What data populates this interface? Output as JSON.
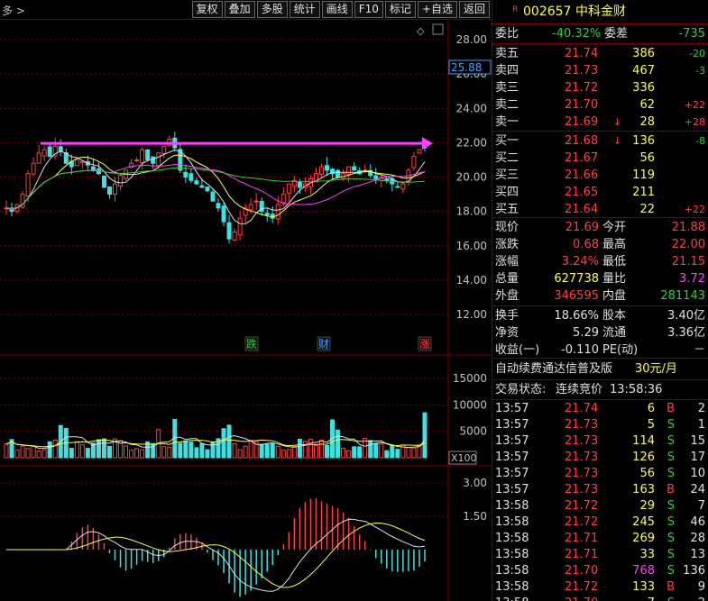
{
  "toolbar": {
    "title": "多 >",
    "buttons": [
      "复权",
      "叠加",
      "多股",
      "统计",
      "画线",
      "F10",
      "标记",
      "+自选",
      "返回"
    ]
  },
  "price_axis": [
    "28.00",
    "26.00",
    "24.00",
    "22.00",
    "20.00",
    "18.00",
    "16.00",
    "14.00",
    "12.00"
  ],
  "price_tag": "25.88",
  "volume_axis": [
    "15000",
    "10000",
    "5000"
  ],
  "volume_unit": "X100",
  "macd_axis": [
    "3.00",
    "1.50"
  ],
  "markers": [
    {
      "label": "跌",
      "color": "#30d030"
    },
    {
      "label": "财",
      "color": "#40a0ff"
    },
    {
      "label": "涨",
      "color": "#ff4040"
    }
  ],
  "stock": {
    "code": "002657",
    "name": "中科金财",
    "badge": "R"
  },
  "weibi": {
    "label1": "委比",
    "value1": "-40.32%",
    "label2": "委差",
    "value2": "-735"
  },
  "asks": [
    {
      "label": "卖五",
      "price": "21.74",
      "vol": "386",
      "chg": "-20",
      "chg_color": "grn",
      "arrow": ""
    },
    {
      "label": "卖四",
      "price": "21.73",
      "vol": "467",
      "chg": "-3",
      "chg_color": "grn",
      "arrow": ""
    },
    {
      "label": "卖三",
      "price": "21.72",
      "vol": "336",
      "chg": "",
      "chg_color": "red",
      "arrow": ""
    },
    {
      "label": "卖二",
      "price": "21.70",
      "vol": "62",
      "chg": "+22",
      "chg_color": "red",
      "arrow": ""
    },
    {
      "label": "卖一",
      "price": "21.69",
      "vol": "28",
      "chg": "+28",
      "chg_color": "red",
      "arrow": "↓"
    }
  ],
  "bids": [
    {
      "label": "买一",
      "price": "21.68",
      "vol": "136",
      "chg": "-8",
      "chg_color": "grn",
      "arrow": "↓"
    },
    {
      "label": "买二",
      "price": "21.67",
      "vol": "56",
      "chg": "",
      "chg_color": "red",
      "arrow": ""
    },
    {
      "label": "买三",
      "price": "21.66",
      "vol": "119",
      "chg": "",
      "chg_color": "red",
      "arrow": ""
    },
    {
      "label": "买四",
      "price": "21.65",
      "vol": "211",
      "chg": "",
      "chg_color": "red",
      "arrow": ""
    },
    {
      "label": "买五",
      "price": "21.64",
      "vol": "22",
      "chg": "+22",
      "chg_color": "red",
      "arrow": ""
    }
  ],
  "quote": [
    {
      "l1": "现价",
      "v1": "21.69",
      "c1": "red",
      "l2": "今开",
      "v2": "21.88",
      "c2": "red"
    },
    {
      "l1": "涨跌",
      "v1": "0.68",
      "c1": "red",
      "l2": "最高",
      "v2": "22.00",
      "c2": "red"
    },
    {
      "l1": "涨幅",
      "v1": "3.24%",
      "c1": "red",
      "l2": "最低",
      "v2": "21.15",
      "c2": "red"
    },
    {
      "l1": "总量",
      "v1": "627738",
      "c1": "yel",
      "l2": "量比",
      "v2": "3.72",
      "c2": "mag"
    },
    {
      "l1": "外盘",
      "v1": "346595",
      "c1": "red",
      "l2": "内盘",
      "v2": "281143",
      "c2": "grn"
    }
  ],
  "stats": [
    {
      "l1": "换手",
      "v1": "18.66%",
      "l2": "股本",
      "v2": "3.40亿"
    },
    {
      "l1": "净资",
      "v1": "5.29",
      "l2": "流通",
      "v2": "3.36亿"
    },
    {
      "l1": "收益(一)",
      "v1": "-0.110",
      "l2": "PE(动)",
      "v2": "－"
    }
  ],
  "promo": {
    "text": "自动续费通达信普及版",
    "price": "30元/月"
  },
  "trade_status": {
    "label": "交易状态:",
    "value": "连续竞价",
    "time": "13:58:36"
  },
  "ticks": [
    {
      "time": "13:57",
      "price": "21.74",
      "vol": "6",
      "bs": "B",
      "n": "2",
      "vc": "yel"
    },
    {
      "time": "13:57",
      "price": "21.73",
      "vol": "5",
      "bs": "S",
      "n": "1",
      "vc": "yel"
    },
    {
      "time": "13:57",
      "price": "21.73",
      "vol": "114",
      "bs": "S",
      "n": "15",
      "vc": "yel"
    },
    {
      "time": "13:57",
      "price": "21.73",
      "vol": "126",
      "bs": "S",
      "n": "17",
      "vc": "yel"
    },
    {
      "time": "13:57",
      "price": "21.73",
      "vol": "56",
      "bs": "S",
      "n": "10",
      "vc": "yel"
    },
    {
      "time": "13:57",
      "price": "21.73",
      "vol": "163",
      "bs": "B",
      "n": "24",
      "vc": "yel"
    },
    {
      "time": "13:58",
      "price": "21.72",
      "vol": "29",
      "bs": "S",
      "n": "7",
      "vc": "yel"
    },
    {
      "time": "13:58",
      "price": "21.72",
      "vol": "245",
      "bs": "S",
      "n": "46",
      "vc": "yel"
    },
    {
      "time": "13:58",
      "price": "21.71",
      "vol": "269",
      "bs": "S",
      "n": "28",
      "vc": "yel"
    },
    {
      "time": "13:58",
      "price": "21.71",
      "vol": "33",
      "bs": "S",
      "n": "13",
      "vc": "yel"
    },
    {
      "time": "13:58",
      "price": "21.70",
      "vol": "768",
      "bs": "S",
      "n": "136",
      "vc": "mag"
    },
    {
      "time": "13:58",
      "price": "21.72",
      "vol": "133",
      "bs": "B",
      "n": "9",
      "vc": "yel"
    },
    {
      "time": "13:58",
      "price": "21.70",
      "vol": "7",
      "bs": "S",
      "n": "2",
      "vc": "yel"
    }
  ],
  "colors": {
    "up": "#ff4040",
    "down": "#40e0e0",
    "ma5": "#e0e0e0",
    "ma10": "#ffff40",
    "ma20": "#ff40ff",
    "ma60": "#30d030",
    "resistance": "#ff40ff",
    "grid": "#7a0000"
  }
}
